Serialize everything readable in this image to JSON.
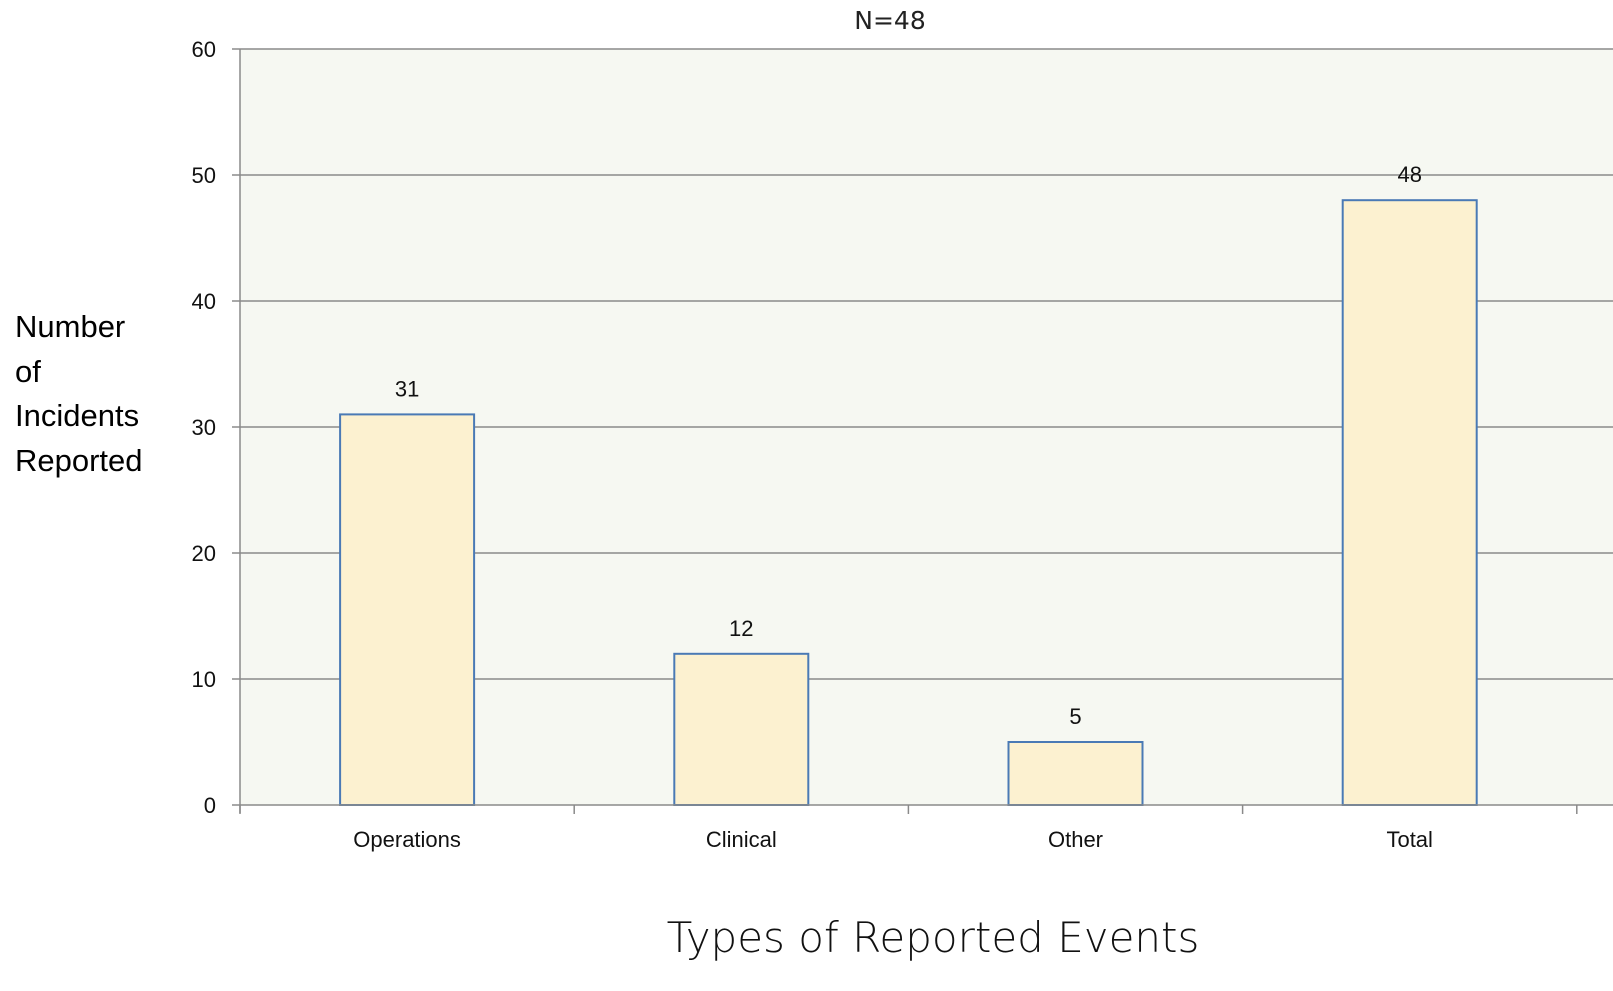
{
  "chart_data": {
    "type": "bar",
    "subtitle": "N=48",
    "xlabel": "Types of Reported Events",
    "ylabel_lines": [
      "Number",
      "of",
      "Incidents",
      "Reported"
    ],
    "categories": [
      "Operations",
      "Clinical",
      "Other",
      "Total"
    ],
    "values": [
      31,
      12,
      5,
      48
    ],
    "data_labels": [
      "31",
      "12",
      "5",
      "48"
    ],
    "ylim": [
      0,
      60
    ],
    "yticks": [
      0,
      10,
      20,
      30,
      40,
      50,
      60
    ],
    "grid": true,
    "legend": "none",
    "colors": {
      "plot_background": "#f6f8f2",
      "bar_fill": "#fcf1d0",
      "bar_stroke": "#4a7ab5",
      "gridline": "#8a8a8a",
      "axis": "#8a8a8a"
    }
  }
}
